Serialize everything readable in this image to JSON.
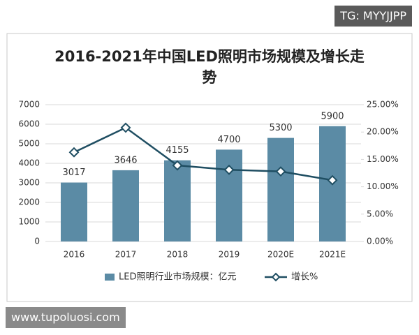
{
  "chart_data": {
    "type": "bar",
    "title": "2016-2021年中国LED照明市场规模及增长走势",
    "categories": [
      "2016",
      "2017",
      "2018",
      "2019",
      "2020E",
      "2021E"
    ],
    "series": [
      {
        "name": "LED照明行业市场规模：亿元",
        "type": "bar",
        "color": "#5b8ba5",
        "values": [
          3017,
          3646,
          4155,
          4700,
          5300,
          5900
        ]
      },
      {
        "name": "增长%",
        "type": "line",
        "axis": "y2",
        "color": "#1f4e62",
        "values": [
          16.3,
          20.8,
          13.9,
          13.1,
          12.8,
          11.2
        ]
      }
    ],
    "ylim": [
      0,
      7000
    ],
    "yticks": [
      0,
      1000,
      2000,
      3000,
      4000,
      5000,
      6000,
      7000
    ],
    "y2lim": [
      0,
      25
    ],
    "y2ticks": [
      {
        "value": 0,
        "label": "0.00%"
      },
      {
        "value": 5,
        "label": "5.00%"
      },
      {
        "value": 10,
        "label": "10.00%"
      },
      {
        "value": 15,
        "label": "15.00%"
      },
      {
        "value": 20,
        "label": "20.00%"
      },
      {
        "value": 25,
        "label": "25.00%"
      }
    ],
    "grid": true,
    "legend": "bottom"
  },
  "watermarks": [
    "TG: MYYJJPP",
    "www.tupoluosi.com"
  ]
}
